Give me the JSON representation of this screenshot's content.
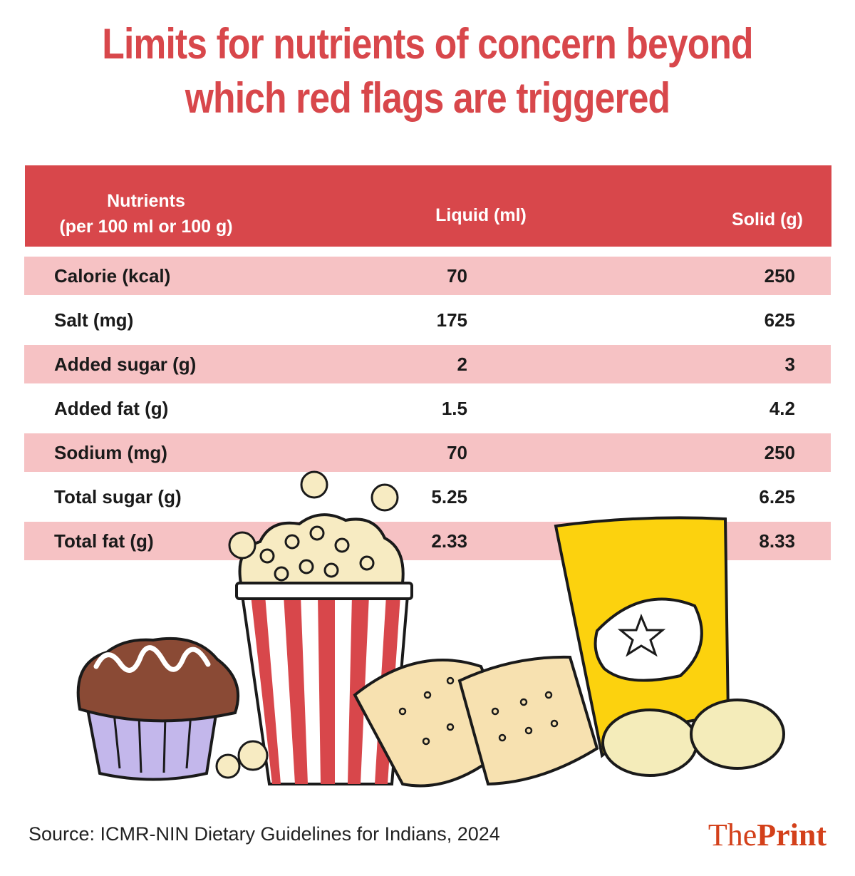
{
  "title": {
    "line1": "Limits for nutrients of concern beyond",
    "line2": "which red flags are triggered"
  },
  "chart_data": {
    "type": "table",
    "columns": {
      "nutrient_line1": "Nutrients",
      "nutrient_line2": "(per 100 ml or 100 g)",
      "liquid": "Liquid (ml)",
      "solid": "Solid (g)"
    },
    "rows": [
      {
        "nutrient": "Calorie (kcal)",
        "liquid": "70",
        "solid": "250"
      },
      {
        "nutrient": "Salt (mg)",
        "liquid": "175",
        "solid": "625"
      },
      {
        "nutrient": "Added sugar (g)",
        "liquid": "2",
        "solid": "3"
      },
      {
        "nutrient": "Added fat (g)",
        "liquid": "1.5",
        "solid": "4.2"
      },
      {
        "nutrient": "Sodium (mg)",
        "liquid": "70",
        "solid": "250"
      },
      {
        "nutrient": "Total sugar (g)",
        "liquid": "5.25",
        "solid": "6.25"
      },
      {
        "nutrient": "Total fat (g)",
        "liquid": "2.33",
        "solid": "8.33"
      }
    ]
  },
  "colors": {
    "accent": "#d8474b",
    "row_shade": "#f6c2c4",
    "logo": "#d3401a"
  },
  "footer": {
    "source": "Source: ICMR-NIN Dietary Guidelines for Indians, 2024",
    "logo_part1": "The",
    "logo_part2": "Print"
  }
}
